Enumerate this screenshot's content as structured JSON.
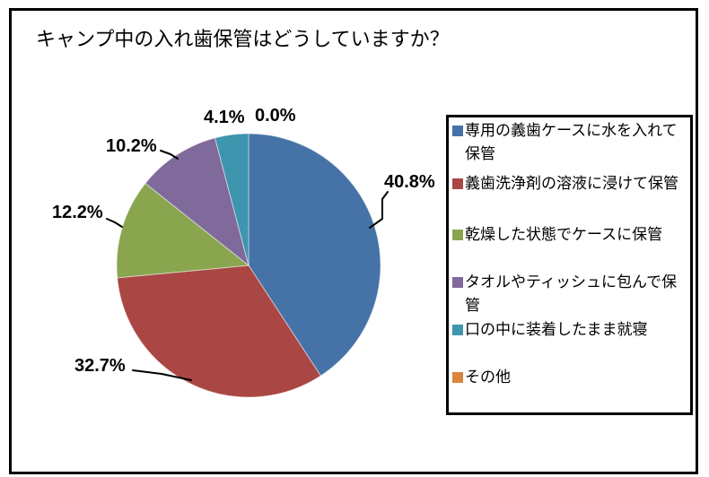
{
  "header": {
    "title": "キャンプ中の入れ歯保管はどうしていますか？"
  },
  "chart_data": {
    "type": "pie",
    "title": "キャンプ中の入れ歯保管はどうしていますか？",
    "legend_position": "right",
    "start_angle_deg": 0,
    "direction": "clockwise",
    "slices": [
      {
        "label": "専用の義歯ケースに水を入れて保管",
        "value": 40.8,
        "display": "40.8%",
        "color": "#4572A7"
      },
      {
        "label": "義歯洗浄剤の溶液に浸けて保管",
        "value": 32.7,
        "display": "32.7%",
        "color": "#AA4643"
      },
      {
        "label": "乾燥した状態でケースに保管",
        "value": 12.2,
        "display": "12.2%",
        "color": "#89A54E"
      },
      {
        "label": "タオルやティッシュに包んで保管",
        "value": 10.2,
        "display": "10.2%",
        "color": "#80699B"
      },
      {
        "label": "口の中に装着したまま就寝",
        "value": 4.1,
        "display": "4.1%",
        "color": "#3D96AE"
      },
      {
        "label": "その他",
        "value": 0.0,
        "display": "0.0%",
        "color": "#DB843D"
      }
    ]
  }
}
